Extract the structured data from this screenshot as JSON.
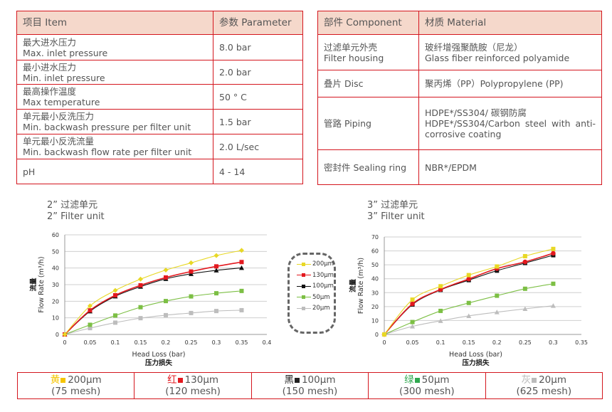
{
  "spec_table": {
    "headers": [
      "项目 Item",
      "参数 Parameter"
    ],
    "rows": [
      {
        "cn": "最大进水压力",
        "en": "Max. inlet pressure",
        "value": "8.0 bar"
      },
      {
        "cn": "最小进水压力",
        "en": "Min. inlet pressure",
        "value": "2.0 bar"
      },
      {
        "cn": "最高操作温度",
        "en": "Max temperature",
        "value": "50 ° C"
      },
      {
        "cn": "单元最小反洗压力",
        "en": "Min. backwash pressure per filter unit",
        "value": "1.5 bar"
      },
      {
        "cn": "单元最小反洗流量",
        "en": "Min. backwash flow rate per filter unit",
        "value": "2.0 L/sec"
      },
      {
        "cn": "",
        "en": "pH",
        "value": "4 - 14"
      }
    ]
  },
  "material_table": {
    "headers": [
      "部件 Component",
      "材质 Material"
    ],
    "rows": [
      {
        "component": "过滤单元外壳\nFilter housing",
        "material": "玻纤增强聚酰胺（尼龙）\nGlass fiber reinforced polyamide"
      },
      {
        "component": "叠片 Disc",
        "material": "聚丙烯（PP）Polypropylene (PP)"
      },
      {
        "component": "管路 Piping",
        "material": "HDPE*/SS304/ 碳钢防腐\nHDPE*/SS304/Carbon steel with anti-corrosive coating"
      },
      {
        "component": "密封件 Sealing ring",
        "material": "NBR*/EPDM"
      }
    ]
  },
  "chart_data": [
    {
      "type": "line",
      "title": "2” 过滤单元\n2” Filter unit",
      "xlabel": "Head Loss (bar)",
      "xlabel_cn": "压力损失",
      "ylabel": "Flow Rate (m³/h)",
      "ylabel_cn": "流量",
      "xlim": [
        0,
        0.4
      ],
      "ylim": [
        0,
        60
      ],
      "xticks": [
        0,
        0.05,
        0.1,
        0.15,
        0.2,
        0.25,
        0.3,
        0.35,
        0.4
      ],
      "yticks": [
        0,
        10,
        20,
        30,
        40,
        50,
        60
      ],
      "grid": true,
      "x": [
        0,
        0.05,
        0.1,
        0.15,
        0.2,
        0.25,
        0.3,
        0.35
      ],
      "series": [
        {
          "name": "200μm",
          "color": "#e8d826",
          "marker": "diamond",
          "values": [
            0,
            17.2,
            26.5,
            33.3,
            38.8,
            43.1,
            47.5,
            50.6
          ]
        },
        {
          "name": "130μm",
          "color": "#e3191f",
          "marker": "square",
          "values": [
            0,
            14.5,
            23.6,
            29.6,
            34.3,
            37.9,
            41,
            43.6
          ]
        },
        {
          "name": "100μm",
          "color": "#111111",
          "marker": "triangle",
          "values": [
            0,
            14,
            23,
            28.8,
            33.5,
            36.5,
            38.6,
            40.1
          ]
        },
        {
          "name": "50μm",
          "color": "#7cbf44",
          "marker": "square",
          "values": [
            0,
            5.8,
            11.4,
            16.4,
            20.1,
            22.9,
            24.8,
            26.2
          ]
        },
        {
          "name": "20μm",
          "color": "#bdbdbd",
          "marker": "square",
          "values": [
            0,
            3.8,
            7.1,
            9.8,
            11.6,
            12.9,
            14.1,
            14.6
          ]
        }
      ],
      "legend": "right"
    },
    {
      "type": "line",
      "title": "3” 过滤单元\n3” Filter unit",
      "xlabel": "Head Loss (bar)",
      "xlabel_cn": "压力损失",
      "ylabel": "Flow Rate (m³/h)",
      "ylabel_cn": "流量",
      "xlim": [
        0,
        0.35
      ],
      "ylim": [
        0,
        70
      ],
      "xticks": [
        0,
        0.05,
        0.1,
        0.15,
        0.2,
        0.25,
        0.3,
        0.35
      ],
      "yticks": [
        0,
        10,
        20,
        30,
        40,
        50,
        60,
        70
      ],
      "grid": true,
      "x": [
        0,
        0.05,
        0.1,
        0.15,
        0.2,
        0.25,
        0.3
      ],
      "series": [
        {
          "name": "200μm",
          "color": "#e8d826",
          "marker": "square",
          "values": [
            0,
            25,
            34.6,
            42.6,
            48.8,
            56.2,
            61.4
          ]
        },
        {
          "name": "130μm",
          "color": "#e3191f",
          "marker": "circle",
          "values": [
            0,
            22,
            32.3,
            39.8,
            47.3,
            52.1,
            58.3
          ]
        },
        {
          "name": "100μm",
          "color": "#111111",
          "marker": "square",
          "values": [
            0,
            21.5,
            32,
            39,
            45.8,
            51.3,
            56.9
          ]
        },
        {
          "name": "50μm",
          "color": "#7cbf44",
          "marker": "square",
          "values": [
            0,
            8.9,
            16.9,
            22.6,
            27.8,
            32.8,
            36.4
          ]
        },
        {
          "name": "20μm",
          "color": "#bdbdbd",
          "marker": "triangle",
          "values": [
            0,
            5.8,
            9.8,
            13.3,
            16,
            18.4,
            20.6
          ]
        }
      ]
    }
  ],
  "mesh_table": [
    {
      "color_cn": "黄",
      "color": "#f5c400",
      "size": "200μm",
      "mesh": "(75 mesh)"
    },
    {
      "color_cn": "红",
      "color": "#e3191f",
      "size": "130μm",
      "mesh": "(120 mesh)"
    },
    {
      "color_cn": "黑",
      "color": "#222222",
      "size": "100μm",
      "mesh": "(150 mesh)"
    },
    {
      "color_cn": "绿",
      "color": "#2fa84f",
      "size": "50μm",
      "mesh": "(300 mesh)"
    },
    {
      "color_cn": "灰",
      "color": "#bbbbbb",
      "size": "20μm",
      "mesh": "(625 mesh)"
    }
  ]
}
